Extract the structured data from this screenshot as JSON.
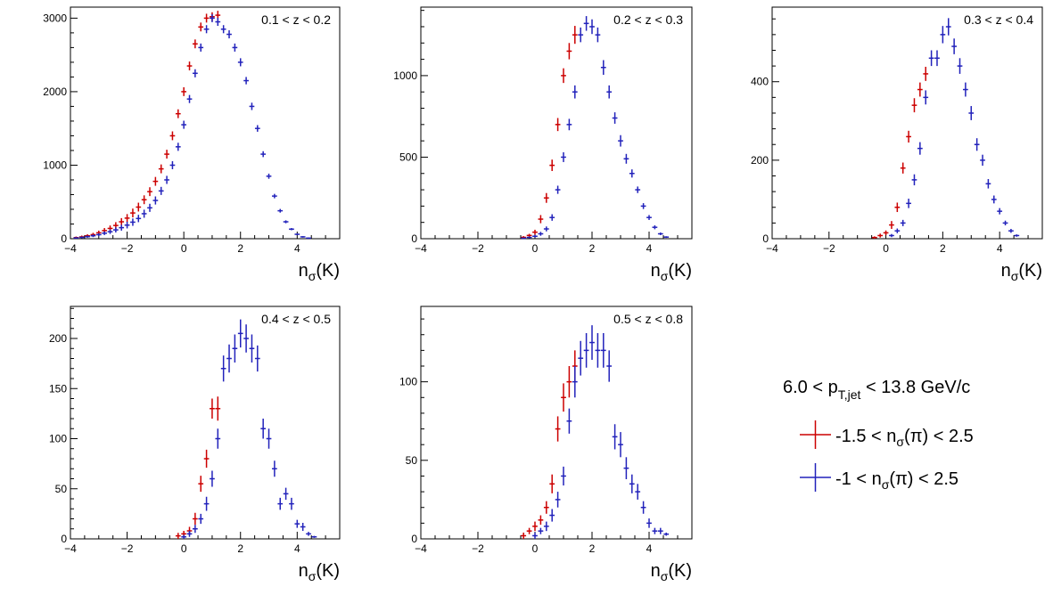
{
  "chart_data": [
    {
      "type": "scatter",
      "annotation": "0.1 < z < 0.2",
      "xlabel": "n_σ(K)",
      "ylabel": "",
      "xlim": [
        -4,
        5.5
      ],
      "ylim": [
        0,
        3150
      ],
      "xticks": [
        -4,
        -2,
        0,
        2,
        4
      ],
      "yticks": [
        0,
        1000,
        2000,
        3000
      ],
      "series": [
        {
          "color": "#cc0000",
          "x": [
            -3.8,
            -3.6,
            -3.4,
            -3.2,
            -3.0,
            -2.8,
            -2.6,
            -2.4,
            -2.2,
            -2.0,
            -1.8,
            -1.6,
            -1.4,
            -1.2,
            -1.0,
            -0.8,
            -0.6,
            -0.4,
            -0.2,
            0.0,
            0.2,
            0.4,
            0.6,
            0.8,
            1.0,
            1.2
          ],
          "y": [
            15,
            25,
            40,
            55,
            80,
            110,
            140,
            180,
            230,
            280,
            350,
            430,
            530,
            640,
            780,
            950,
            1150,
            1400,
            1700,
            2000,
            2350,
            2650,
            2880,
            3000,
            3020,
            3040
          ],
          "err": [
            15,
            18,
            20,
            25,
            30,
            35,
            40,
            45,
            50,
            55,
            60,
            60,
            60,
            60,
            60,
            60,
            60,
            60,
            60,
            60,
            60,
            60,
            60,
            60,
            60,
            60
          ]
        },
        {
          "color": "#2222bb",
          "x": [
            -3.8,
            -3.6,
            -3.4,
            -3.2,
            -3.0,
            -2.8,
            -2.6,
            -2.4,
            -2.2,
            -2.0,
            -1.8,
            -1.6,
            -1.4,
            -1.2,
            -1.0,
            -0.8,
            -0.6,
            -0.4,
            -0.2,
            0.0,
            0.2,
            0.4,
            0.6,
            0.8,
            1.0,
            1.2,
            1.4,
            1.6,
            1.8,
            2.0,
            2.2,
            2.4,
            2.6,
            2.8,
            3.0,
            3.2,
            3.4,
            3.6,
            3.8,
            4.0,
            4.2,
            4.4
          ],
          "y": [
            10,
            18,
            28,
            40,
            55,
            75,
            95,
            120,
            150,
            185,
            225,
            275,
            340,
            420,
            520,
            650,
            800,
            1000,
            1250,
            1550,
            1900,
            2250,
            2600,
            2850,
            3000,
            2950,
            2850,
            2780,
            2600,
            2400,
            2150,
            1800,
            1500,
            1150,
            850,
            580,
            380,
            230,
            130,
            60,
            25,
            8
          ],
          "err": [
            10,
            12,
            15,
            18,
            20,
            25,
            30,
            35,
            40,
            45,
            50,
            50,
            55,
            55,
            55,
            55,
            55,
            55,
            55,
            55,
            55,
            55,
            55,
            55,
            55,
            55,
            55,
            55,
            55,
            55,
            50,
            50,
            45,
            40,
            35,
            30,
            25,
            20,
            15,
            12,
            10,
            8
          ]
        }
      ]
    },
    {
      "type": "scatter",
      "annotation": "0.2 < z < 0.3",
      "xlabel": "n_σ(K)",
      "ylabel": "",
      "xlim": [
        -4,
        5.5
      ],
      "ylim": [
        0,
        1420
      ],
      "xticks": [
        -4,
        -2,
        0,
        2,
        4
      ],
      "yticks": [
        0,
        500,
        1000
      ],
      "series": [
        {
          "color": "#cc0000",
          "x": [
            -0.4,
            -0.2,
            0.0,
            0.2,
            0.4,
            0.6,
            0.8,
            1.0,
            1.2,
            1.4
          ],
          "y": [
            8,
            20,
            40,
            120,
            250,
            450,
            700,
            1000,
            1150,
            1250
          ],
          "err": [
            8,
            10,
            15,
            25,
            30,
            35,
            40,
            45,
            50,
            55
          ]
        },
        {
          "color": "#2222bb",
          "x": [
            -0.4,
            -0.2,
            0.0,
            0.2,
            0.4,
            0.6,
            0.8,
            1.0,
            1.2,
            1.4,
            1.6,
            1.8,
            2.0,
            2.2,
            2.4,
            2.6,
            2.8,
            3.0,
            3.2,
            3.4,
            3.6,
            3.8,
            4.0,
            4.2,
            4.4,
            4.6
          ],
          "y": [
            3,
            8,
            15,
            30,
            60,
            130,
            300,
            500,
            700,
            900,
            1250,
            1320,
            1300,
            1250,
            1050,
            900,
            740,
            600,
            490,
            400,
            300,
            200,
            130,
            70,
            30,
            10
          ],
          "err": [
            3,
            5,
            8,
            12,
            15,
            20,
            25,
            30,
            35,
            40,
            45,
            45,
            45,
            45,
            45,
            40,
            35,
            35,
            30,
            25,
            20,
            18,
            15,
            12,
            8,
            5
          ]
        }
      ]
    },
    {
      "type": "scatter",
      "annotation": "0.3 < z < 0.4",
      "xlabel": "n_σ(K)",
      "ylabel": "",
      "xlim": [
        -4,
        5.5
      ],
      "ylim": [
        0,
        590
      ],
      "xticks": [
        -4,
        -2,
        0,
        2,
        4
      ],
      "yticks": [
        0,
        200,
        400
      ],
      "series": [
        {
          "color": "#cc0000",
          "x": [
            -0.4,
            -0.2,
            0.0,
            0.2,
            0.4,
            0.6,
            0.8,
            1.0,
            1.2,
            1.4
          ],
          "y": [
            3,
            8,
            15,
            35,
            80,
            180,
            260,
            340,
            380,
            420
          ],
          "err": [
            3,
            5,
            6,
            10,
            12,
            14,
            15,
            18,
            18,
            18
          ]
        },
        {
          "color": "#2222bb",
          "x": [
            0.2,
            0.4,
            0.6,
            0.8,
            1.0,
            1.2,
            1.4,
            1.6,
            1.8,
            2.0,
            2.2,
            2.4,
            2.6,
            2.8,
            3.0,
            3.2,
            3.4,
            3.6,
            3.8,
            4.0,
            4.2,
            4.4,
            4.6
          ],
          "y": [
            8,
            20,
            40,
            90,
            150,
            230,
            360,
            460,
            460,
            520,
            540,
            490,
            440,
            380,
            320,
            240,
            200,
            140,
            100,
            70,
            40,
            20,
            8
          ],
          "err": [
            4,
            6,
            8,
            12,
            14,
            16,
            18,
            20,
            20,
            22,
            22,
            20,
            20,
            18,
            18,
            16,
            14,
            12,
            10,
            8,
            6,
            5,
            3
          ]
        }
      ]
    },
    {
      "type": "scatter",
      "annotation": "0.4 < z < 0.5",
      "xlabel": "n_σ(K)",
      "ylabel": "",
      "xlim": [
        -4,
        5.5
      ],
      "ylim": [
        0,
        232
      ],
      "xticks": [
        -4,
        -2,
        0,
        2,
        4
      ],
      "yticks": [
        0,
        50,
        100,
        150,
        200
      ],
      "series": [
        {
          "color": "#cc0000",
          "x": [
            -0.2,
            0.0,
            0.2,
            0.4,
            0.6,
            0.8,
            1.0,
            1.2
          ],
          "y": [
            3,
            5,
            8,
            20,
            55,
            80,
            130,
            130
          ],
          "err": [
            3,
            3,
            4,
            6,
            8,
            9,
            10,
            12
          ]
        },
        {
          "color": "#2222bb",
          "x": [
            0.0,
            0.2,
            0.4,
            0.6,
            0.8,
            1.0,
            1.2,
            1.4,
            1.6,
            1.8,
            2.0,
            2.2,
            2.4,
            2.6,
            2.8,
            3.0,
            3.2,
            3.4,
            3.6,
            3.8,
            4.0,
            4.2,
            4.4,
            4.6
          ],
          "y": [
            2,
            5,
            10,
            20,
            35,
            60,
            100,
            170,
            180,
            190,
            205,
            200,
            190,
            180,
            110,
            100,
            70,
            35,
            45,
            35,
            15,
            12,
            5,
            2
          ],
          "err": [
            2,
            3,
            4,
            5,
            7,
            8,
            10,
            13,
            14,
            14,
            14,
            14,
            14,
            13,
            10,
            10,
            8,
            6,
            6,
            6,
            4,
            4,
            2,
            1
          ]
        }
      ]
    },
    {
      "type": "scatter",
      "annotation": "0.5 < z < 0.8",
      "xlabel": "n_σ(K)",
      "ylabel": "",
      "xlim": [
        -4,
        5.5
      ],
      "ylim": [
        0,
        148
      ],
      "xticks": [
        -4,
        -2,
        0,
        2,
        4
      ],
      "yticks": [
        0,
        50,
        100
      ],
      "series": [
        {
          "color": "#cc0000",
          "x": [
            -0.4,
            -0.2,
            0.0,
            0.2,
            0.4,
            0.6,
            0.8,
            1.0,
            1.2,
            1.4
          ],
          "y": [
            2,
            5,
            8,
            12,
            20,
            35,
            70,
            90,
            100,
            110
          ],
          "err": [
            2,
            2,
            3,
            3,
            4,
            6,
            8,
            9,
            10,
            10
          ]
        },
        {
          "color": "#2222bb",
          "x": [
            0.0,
            0.2,
            0.4,
            0.6,
            0.8,
            1.0,
            1.2,
            1.4,
            1.6,
            1.8,
            2.0,
            2.2,
            2.4,
            2.6,
            2.8,
            3.0,
            3.2,
            3.4,
            3.6,
            3.8,
            4.0,
            4.2,
            4.4,
            4.6
          ],
          "y": [
            2,
            5,
            8,
            15,
            25,
            40,
            75,
            100,
            115,
            120,
            125,
            120,
            120,
            110,
            65,
            60,
            45,
            35,
            30,
            20,
            10,
            5,
            5,
            3
          ],
          "err": [
            2,
            2,
            3,
            4,
            5,
            6,
            8,
            10,
            11,
            11,
            11,
            11,
            11,
            10,
            8,
            8,
            7,
            6,
            5,
            4,
            3,
            2,
            2,
            1
          ]
        }
      ]
    }
  ],
  "legend": {
    "title": "6.0 < p_T,jet < 13.8 GeV/c",
    "entries": [
      {
        "label": "-1.5 < n_σ(π) < 2.5",
        "color": "#cc0000"
      },
      {
        "label": "-1 < n_σ(π) < 2.5",
        "color": "#2222bb"
      }
    ]
  }
}
